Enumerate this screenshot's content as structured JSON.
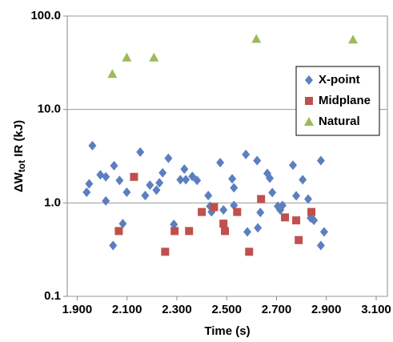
{
  "chart_data": {
    "type": "scatter",
    "x_label": "Time (s)",
    "y_label_parts": [
      "ΔW",
      "tot",
      " IR (kJ)"
    ],
    "xlim": [
      1.86,
      3.145
    ],
    "ylim": [
      0.1,
      100
    ],
    "log_y": true,
    "grid_y": true,
    "legend": "upper right",
    "xticks": [
      {
        "value": 1.9,
        "label": "1.900"
      },
      {
        "value": 2.1,
        "label": "2.100"
      },
      {
        "value": 2.3,
        "label": "2.300"
      },
      {
        "value": 2.5,
        "label": "2.500"
      },
      {
        "value": 2.7,
        "label": "2.700"
      },
      {
        "value": 2.9,
        "label": "2.900"
      },
      {
        "value": 3.1,
        "label": "3.100"
      }
    ],
    "yticks": [
      {
        "value": 0.1,
        "label": "0.1"
      },
      {
        "value": 1,
        "label": "1.0"
      },
      {
        "value": 10,
        "label": "10.0"
      },
      {
        "value": 100,
        "label": "100.0"
      }
    ],
    "series": [
      {
        "name": "X-point",
        "color": "#5b7fbf",
        "marker": "diamond",
        "x": [
          1.938,
          1.948,
          1.961,
          1.993,
          2.015,
          2.015,
          2.048,
          2.07,
          2.083,
          2.099,
          2.153,
          2.173,
          2.192,
          2.218,
          2.23,
          2.243,
          2.266,
          2.288,
          2.314,
          2.33,
          2.336,
          2.362,
          2.381,
          2.426,
          2.433,
          2.439,
          2.474,
          2.487,
          2.522,
          2.529,
          2.529,
          2.577,
          2.583,
          2.622,
          2.625,
          2.635,
          2.663,
          2.673,
          2.683,
          2.705,
          2.715,
          2.724,
          2.766,
          2.779,
          2.805,
          2.827,
          2.837,
          2.85,
          2.878,
          2.878,
          2.891,
          2.044
        ],
        "values": [
          1.3,
          1.6,
          4.1,
          2.0,
          1.9,
          1.05,
          2.5,
          1.74,
          0.6,
          1.3,
          3.5,
          1.2,
          1.55,
          1.37,
          1.64,
          2.1,
          3.0,
          0.59,
          1.77,
          2.3,
          1.77,
          1.92,
          1.74,
          1.2,
          0.92,
          0.8,
          2.7,
          0.84,
          1.81,
          1.45,
          0.94,
          3.3,
          0.49,
          2.84,
          0.54,
          0.79,
          2.07,
          1.84,
          1.29,
          0.92,
          0.84,
          0.94,
          2.53,
          1.19,
          1.77,
          1.1,
          0.69,
          0.65,
          2.84,
          0.35,
          0.49,
          0.35
        ]
      },
      {
        "name": "Midplane",
        "color": "#c0504d",
        "marker": "square",
        "x": [
          2.128,
          2.067,
          2.253,
          2.291,
          2.349,
          2.4,
          2.449,
          2.487,
          2.493,
          2.542,
          2.59,
          2.638,
          2.734,
          2.779,
          2.789,
          2.84
        ],
        "values": [
          1.9,
          0.5,
          0.3,
          0.5,
          0.5,
          0.8,
          0.9,
          0.6,
          0.5,
          0.8,
          0.3,
          1.1,
          0.7,
          0.65,
          0.4,
          0.8
        ]
      },
      {
        "name": "Natural",
        "color": "#9bbb59",
        "marker": "triangle",
        "x": [
          2.041,
          2.099,
          2.208,
          2.619,
          3.007
        ],
        "values": [
          24,
          36,
          36,
          57,
          56
        ]
      }
    ]
  }
}
